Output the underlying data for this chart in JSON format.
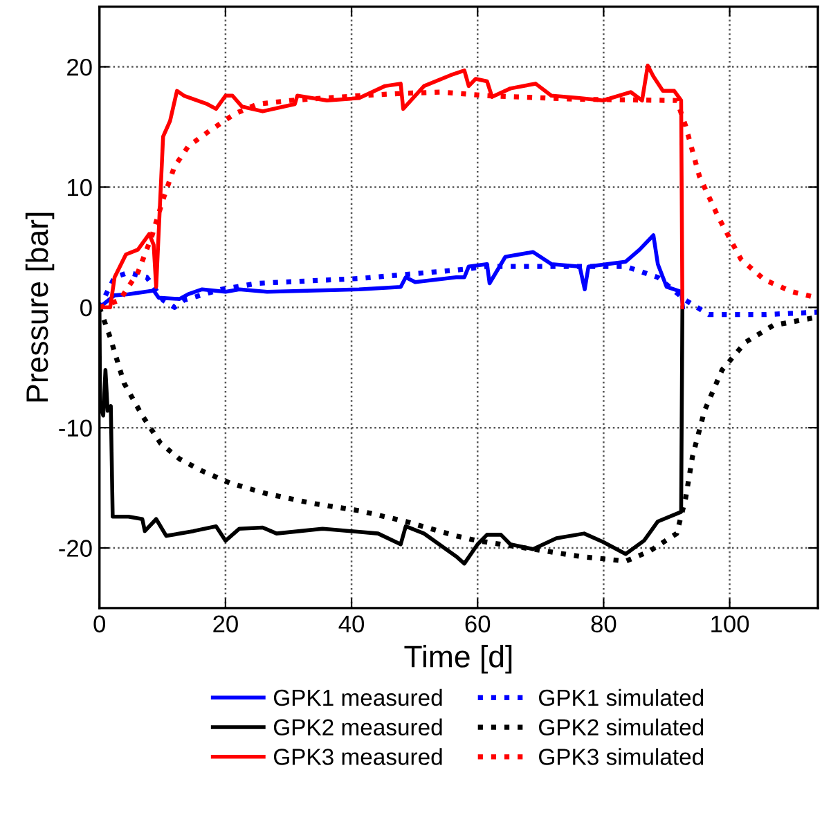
{
  "chart_data": {
    "type": "line",
    "xlabel": "Time [d]",
    "ylabel": "Pressure [bar]",
    "xlim": [
      0,
      114
    ],
    "ylim": [
      -25,
      25
    ],
    "xticks": [
      0,
      20,
      40,
      60,
      80,
      100
    ],
    "yticks": [
      -20,
      -10,
      0,
      10,
      20
    ],
    "grid": true,
    "legend": "bottom",
    "marker": "none",
    "series": [
      {
        "name": "GPK1 measured",
        "color": "#0000ff",
        "line_style": "solid",
        "x": [
          0,
          2.4,
          4.6,
          8.6,
          9.4,
          12.7,
          14.1,
          16.3,
          20,
          22.2,
          26.6,
          41.2,
          47.8,
          48.6,
          50.1,
          56.6,
          57.9,
          58.6,
          61.5,
          61.9,
          64.4,
          68.8,
          71.7,
          76.2,
          77,
          77.6,
          83.5,
          85.7,
          87.9,
          88.6,
          90,
          92.3,
          92.6
        ],
        "values": [
          0,
          1.0,
          1.1,
          1.4,
          0.8,
          0.7,
          1.1,
          1.5,
          1.3,
          1.5,
          1.3,
          1.5,
          1.7,
          2.5,
          2.1,
          2.5,
          2.5,
          3.4,
          3.6,
          2.0,
          4.2,
          4.6,
          3.6,
          3.4,
          1.5,
          3.4,
          3.8,
          4.8,
          6.0,
          3.6,
          1.7,
          1.3,
          0
        ]
      },
      {
        "name": "GPK1 simulated",
        "color": "#0000ff",
        "line_style": "dotted",
        "x": [
          0,
          2.4,
          4.6,
          7.5,
          10.1,
          11.9,
          13.4,
          19.3,
          25.1,
          41.2,
          56.6,
          61.5,
          72.5,
          83.5,
          88.6,
          93,
          96.7,
          105.5,
          113.9
        ],
        "values": [
          0,
          2.5,
          2.9,
          2.5,
          0.6,
          0,
          0.6,
          1.5,
          2.0,
          2.4,
          3.1,
          3.4,
          3.4,
          3.4,
          2.5,
          0.6,
          -0.6,
          -0.6,
          -0.4
        ]
      },
      {
        "name": "GPK2 measured",
        "color": "#000000",
        "line_style": "solid",
        "x": [
          0,
          0.1,
          0.6,
          0.95,
          1.3,
          1.8,
          2.1,
          4.6,
          6.8,
          7.2,
          9,
          10.6,
          14.9,
          18.5,
          20,
          22.2,
          25.9,
          28.1,
          35.4,
          44.2,
          47.8,
          48.6,
          51.5,
          56.6,
          57.9,
          60,
          61.5,
          63.7,
          65.2,
          68.8,
          72.5,
          76.9,
          79.9,
          83.5,
          86.4,
          88.6,
          92.3,
          92.5
        ],
        "values": [
          0,
          -8.2,
          -9.0,
          -5.2,
          -8.6,
          -8.2,
          -17.4,
          -17.4,
          -17.6,
          -18.6,
          -17.6,
          -19.0,
          -18.6,
          -18.2,
          -19.4,
          -18.4,
          -18.3,
          -18.8,
          -18.4,
          -18.8,
          -19.7,
          -18.2,
          -18.8,
          -20.7,
          -21.3,
          -19.7,
          -18.9,
          -18.9,
          -19.7,
          -20.1,
          -19.2,
          -18.8,
          -19.5,
          -20.5,
          -19.4,
          -17.8,
          -17.0,
          0
        ]
      },
      {
        "name": "GPK2 simulated",
        "color": "#000000",
        "line_style": "dotted",
        "x": [
          0,
          1.7,
          3.9,
          6.8,
          9.7,
          12.7,
          16.3,
          20.7,
          26.6,
          33.9,
          41.2,
          48.6,
          56.6,
          60,
          68.8,
          76.2,
          83.5,
          87.2,
          91.6,
          93,
          94.1,
          96,
          98.8,
          102.5,
          106.9,
          114
        ],
        "values": [
          0,
          -2.5,
          -6.3,
          -9.0,
          -11.3,
          -12.6,
          -13.6,
          -14.6,
          -15.5,
          -16.3,
          -16.9,
          -17.8,
          -19.0,
          -19.4,
          -20.1,
          -20.7,
          -21.1,
          -20.3,
          -18.8,
          -15.9,
          -12.4,
          -8.6,
          -5.2,
          -2.9,
          -1.5,
          -0.8
        ]
      },
      {
        "name": "GPK3 measured",
        "color": "#ff0000",
        "line_style": "solid",
        "x": [
          0,
          1.7,
          2.4,
          4.2,
          6.1,
          7.9,
          8.6,
          9.0,
          10.1,
          11.2,
          12.3,
          13.4,
          17.1,
          18.5,
          20,
          21.1,
          22.6,
          25.9,
          31,
          31.4,
          36.1,
          41.2,
          45.3,
          47.8,
          48.2,
          51.5,
          55.7,
          57.9,
          58.6,
          59.7,
          61.5,
          62.3,
          65.2,
          69.2,
          71.7,
          76.2,
          79.9,
          84.3,
          86.1,
          87,
          87.9,
          89.4,
          91.2,
          92.3,
          92.5
        ],
        "values": [
          0,
          0,
          2.5,
          4.4,
          4.8,
          6.1,
          5.2,
          1.7,
          14.2,
          15.5,
          18.0,
          17.6,
          16.9,
          16.5,
          17.6,
          17.6,
          16.7,
          16.3,
          16.9,
          17.6,
          17.2,
          17.4,
          18.4,
          18.6,
          16.5,
          18.4,
          19.3,
          19.7,
          18.4,
          19.0,
          18.8,
          17.5,
          18.2,
          18.6,
          17.6,
          17.4,
          17.2,
          17.9,
          17.2,
          20.1,
          19.2,
          18.0,
          18.0,
          17.2,
          0
        ]
      },
      {
        "name": "GPK3 simulated",
        "color": "#ff0000",
        "line_style": "dotted",
        "x": [
          0,
          3.2,
          6.1,
          8.3,
          10.1,
          11.9,
          14.1,
          17.8,
          21.5,
          25.1,
          30.3,
          41.2,
          48.6,
          54.2,
          61.5,
          76.2,
          91.6,
          93,
          95.2,
          98.2,
          101.8,
          105.5,
          109.9,
          113.9
        ],
        "values": [
          0,
          0.6,
          2.9,
          5.9,
          9.0,
          11.7,
          13.4,
          14.8,
          16.1,
          16.9,
          17.2,
          17.6,
          17.8,
          17.9,
          17.6,
          17.3,
          17.2,
          15.1,
          10.9,
          7.5,
          4.0,
          2.3,
          1.3,
          0.8
        ]
      }
    ]
  }
}
